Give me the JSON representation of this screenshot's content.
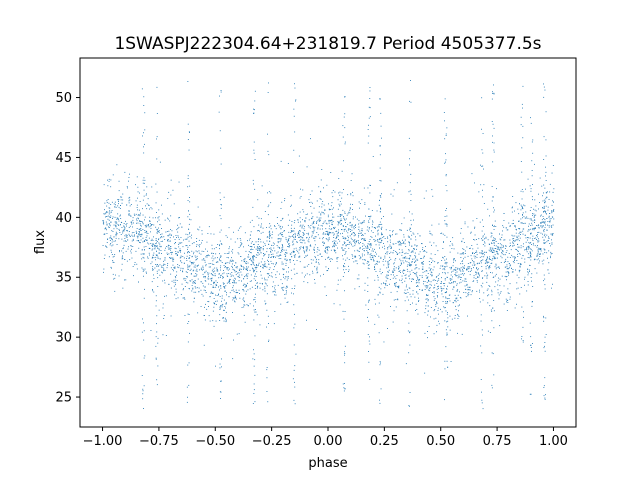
{
  "chart_data": {
    "type": "scatter",
    "title": "1SWASPJ222304.64+231819.7 Period 4505377.5s",
    "xlabel": "phase",
    "ylabel": "flux",
    "xlim": [
      -1.1,
      1.1
    ],
    "ylim": [
      22.5,
      53.3
    ],
    "x_ticks": [
      -1.0,
      -0.75,
      -0.5,
      -0.25,
      0.0,
      0.25,
      0.5,
      0.75,
      1.0
    ],
    "x_tick_labels": [
      "−1.00",
      "−0.75",
      "−0.50",
      "−0.25",
      "0.00",
      "0.25",
      "0.50",
      "0.75",
      "1.00"
    ],
    "y_ticks": [
      25,
      30,
      35,
      40,
      45,
      50
    ],
    "y_tick_labels": [
      "25",
      "30",
      "35",
      "40",
      "45",
      "50"
    ],
    "grid": false,
    "legend": "none",
    "point_color": "#1f77b4",
    "profile": {
      "phase": [
        -1.0,
        -0.9,
        -0.8,
        -0.7,
        -0.6,
        -0.5,
        -0.45,
        -0.4,
        -0.3,
        -0.2,
        -0.1,
        0.0,
        0.1,
        0.2,
        0.3,
        0.4,
        0.5,
        0.55,
        0.6,
        0.7,
        0.8,
        0.9,
        1.0
      ],
      "median_flux": [
        39.5,
        39.0,
        38.2,
        37.0,
        36.5,
        35.0,
        34.5,
        35.5,
        36.5,
        37.0,
        38.2,
        39.0,
        38.5,
        37.5,
        36.5,
        35.5,
        34.5,
        34.8,
        35.5,
        36.5,
        37.2,
        38.3,
        39.5
      ],
      "scatter": 1.6
    },
    "outlier_columns": [
      -0.82,
      -0.76,
      -0.62,
      -0.48,
      -0.33,
      -0.27,
      -0.15,
      0.07,
      0.18,
      0.23,
      0.36,
      0.52,
      0.68,
      0.73,
      0.86,
      0.9,
      0.96
    ]
  }
}
